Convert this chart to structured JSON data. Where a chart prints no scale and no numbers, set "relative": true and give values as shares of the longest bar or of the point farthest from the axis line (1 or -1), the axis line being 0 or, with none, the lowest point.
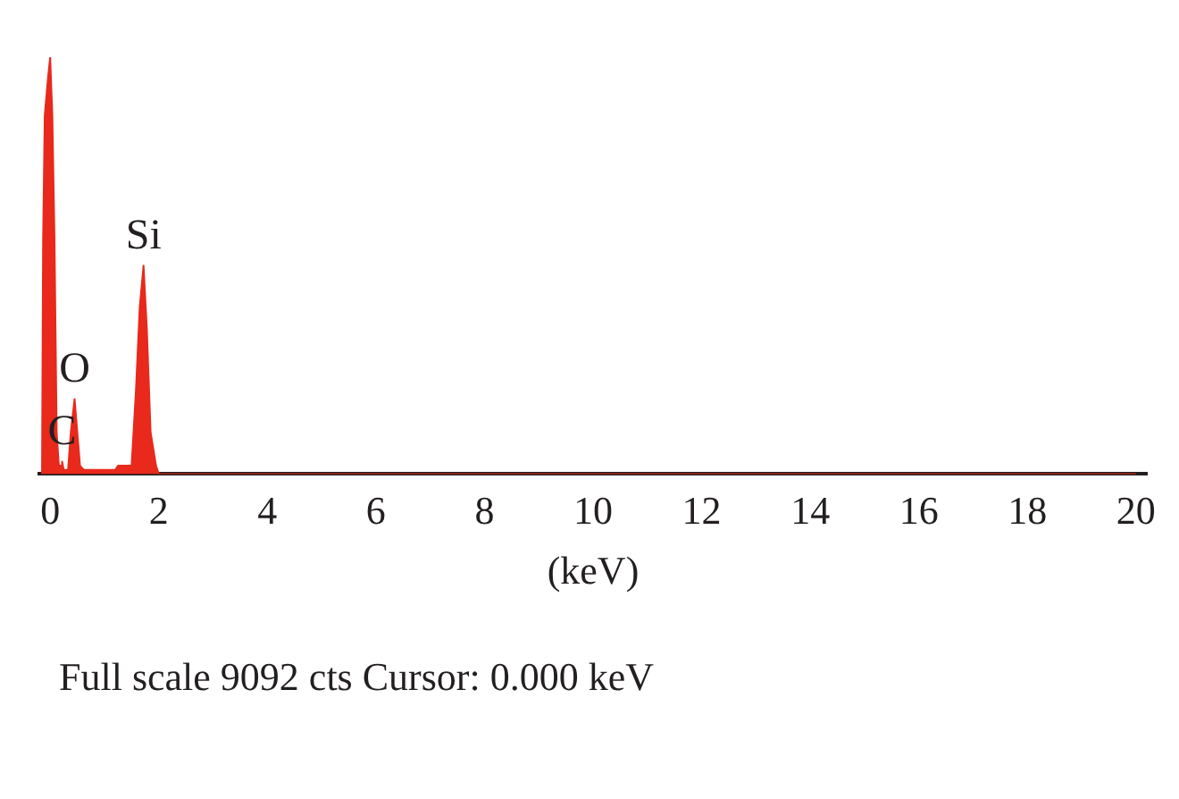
{
  "chart_data": {
    "type": "area",
    "xlabel": "(keV)",
    "relative": true,
    "marker": "none",
    "color": "#e8291c",
    "x": [
      -0.15,
      -0.13,
      -0.1,
      -0.04,
      0,
      0.04,
      0.08,
      0.12,
      0.16,
      0.2,
      0.22,
      0.25,
      0.33,
      0.38,
      0.45,
      0.5,
      0.55,
      0.62,
      1.2,
      1.25,
      1.5,
      1.58,
      1.65,
      1.72,
      1.78,
      1.85,
      1.95,
      2.0,
      20
    ],
    "values": [
      0,
      0.56,
      0.86,
      0.95,
      1,
      0.86,
      0.56,
      0.1,
      0.02,
      0.02,
      0.03,
      0.01,
      0.01,
      0.1,
      0.18,
      0.1,
      0.02,
      0.01,
      0.01,
      0.02,
      0.02,
      0.2,
      0.4,
      0.5,
      0.35,
      0.1,
      0.02,
      0,
      0
    ],
    "xlim": [
      -0.2,
      20.2
    ],
    "xticks": [
      0,
      2,
      4,
      6,
      8,
      10,
      12,
      14,
      16,
      18,
      20
    ],
    "annotations": [
      {
        "text": "C",
        "x": 0.22,
        "y": 0.03
      },
      {
        "text": "O",
        "x": 0.45,
        "y": 0.18
      },
      {
        "text": "Si",
        "x": 1.72,
        "y": 0.5
      },
      "Full scale 9092 cts Cursor: 0.000 keV"
    ]
  }
}
